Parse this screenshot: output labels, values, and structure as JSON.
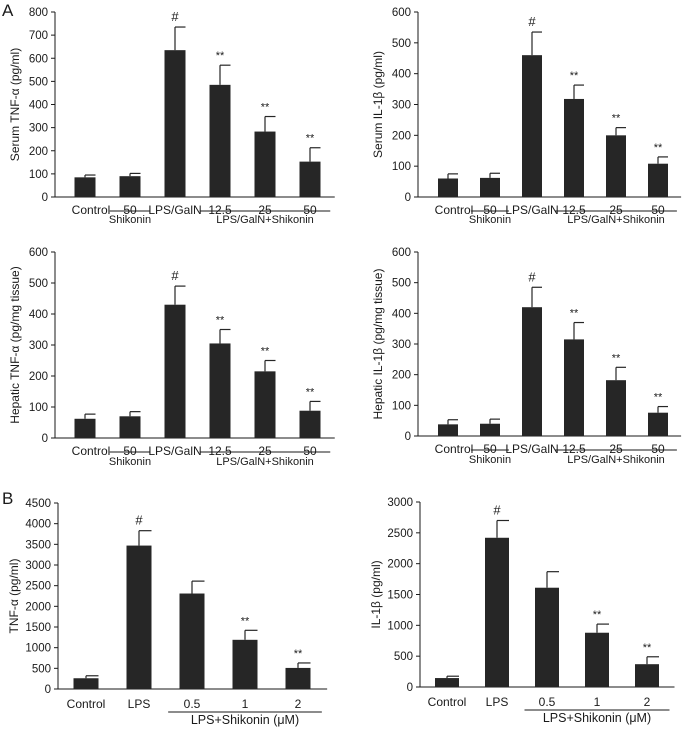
{
  "panel_labels": [
    "A",
    "B"
  ],
  "chart_data": [
    {
      "type": "bar",
      "categories": [
        "Control",
        "50",
        "LPS/GalN",
        "12.5",
        "25",
        "50"
      ],
      "values": [
        85,
        90,
        635,
        485,
        283,
        153
      ],
      "errors": [
        10,
        12,
        100,
        85,
        65,
        60
      ],
      "marks": [
        "",
        "",
        "#",
        "**",
        "**",
        "**"
      ],
      "ylabel": "Serum TNF-α (pg/ml)",
      "ylim": [
        0,
        800
      ],
      "yticks": [
        0,
        100,
        200,
        300,
        400,
        500,
        600,
        700,
        800
      ],
      "groups": [
        {
          "label": "Shikonin",
          "from": 1,
          "to": 1
        },
        {
          "label": "LPS/GalN+Shikonin",
          "from": 3,
          "to": 5
        }
      ]
    },
    {
      "type": "bar",
      "categories": [
        "Control",
        "50",
        "LPS/GalN",
        "12.5",
        "25",
        "50"
      ],
      "values": [
        60,
        62,
        460,
        318,
        200,
        108
      ],
      "errors": [
        15,
        15,
        75,
        45,
        25,
        22
      ],
      "marks": [
        "",
        "",
        "#",
        "**",
        "**",
        "**"
      ],
      "ylabel": "Serum IL-1β (pg/ml)",
      "ylim": [
        0,
        600
      ],
      "yticks": [
        0,
        100,
        200,
        300,
        400,
        500,
        600
      ],
      "groups": [
        {
          "label": "Shikonin",
          "from": 1,
          "to": 1
        },
        {
          "label": "LPS/GalN+Shikonin",
          "from": 3,
          "to": 5
        }
      ]
    },
    {
      "type": "bar",
      "categories": [
        "Control",
        "50",
        "LPS/GalN",
        "12.5",
        "25",
        "50"
      ],
      "values": [
        62,
        70,
        430,
        305,
        215,
        88
      ],
      "errors": [
        15,
        15,
        60,
        45,
        35,
        30
      ],
      "marks": [
        "",
        "",
        "#",
        "**",
        "**",
        "**"
      ],
      "ylabel": "Hepatic TNF-α (pg/mg tissue)",
      "ylim": [
        0,
        600
      ],
      "yticks": [
        0,
        100,
        200,
        300,
        400,
        500,
        600
      ],
      "groups": [
        {
          "label": "Shikonin",
          "from": 1,
          "to": 1
        },
        {
          "label": "LPS/GalN+Shikonin",
          "from": 3,
          "to": 5
        }
      ]
    },
    {
      "type": "bar",
      "categories": [
        "Control",
        "50",
        "LPS/GalN",
        "12.5",
        "25",
        "50"
      ],
      "values": [
        38,
        40,
        420,
        315,
        182,
        76
      ],
      "errors": [
        15,
        15,
        65,
        55,
        42,
        20
      ],
      "marks": [
        "",
        "",
        "#",
        "**",
        "**",
        "**"
      ],
      "ylabel": "Hepatic IL-1β (pg/mg tissue)",
      "ylim": [
        0,
        600
      ],
      "yticks": [
        0,
        100,
        200,
        300,
        400,
        500,
        600
      ],
      "groups": [
        {
          "label": "Shikonin",
          "from": 1,
          "to": 1
        },
        {
          "label": "LPS/GalN+Shikonin",
          "from": 3,
          "to": 5
        }
      ]
    },
    {
      "type": "bar",
      "categories": [
        "Control",
        "LPS",
        "0.5",
        "1",
        "2"
      ],
      "values": [
        260,
        3470,
        2310,
        1190,
        510
      ],
      "errors": [
        60,
        360,
        300,
        230,
        120
      ],
      "marks": [
        "",
        "#",
        "",
        "**",
        "**"
      ],
      "ylabel": "TNF-α (pg/ml)",
      "ylim": [
        0,
        4500
      ],
      "yticks": [
        0,
        500,
        1000,
        1500,
        2000,
        2500,
        3000,
        3500,
        4000,
        4500
      ],
      "groups": [
        {
          "label": "LPS+Shikonin (μM)",
          "from": 2,
          "to": 4
        }
      ]
    },
    {
      "type": "bar",
      "categories": [
        "Control",
        "LPS",
        "0.5",
        "1",
        "2"
      ],
      "values": [
        145,
        2420,
        1610,
        880,
        370
      ],
      "errors": [
        30,
        280,
        260,
        140,
        120
      ],
      "marks": [
        "",
        "#",
        "",
        "**",
        "**"
      ],
      "ylabel": "IL-1β (pg/ml)",
      "ylim": [
        0,
        3000
      ],
      "yticks": [
        0,
        500,
        1000,
        1500,
        2000,
        2500,
        3000
      ],
      "groups": [
        {
          "label": "LPS+Shikonin (μM)",
          "from": 2,
          "to": 4
        }
      ]
    }
  ]
}
